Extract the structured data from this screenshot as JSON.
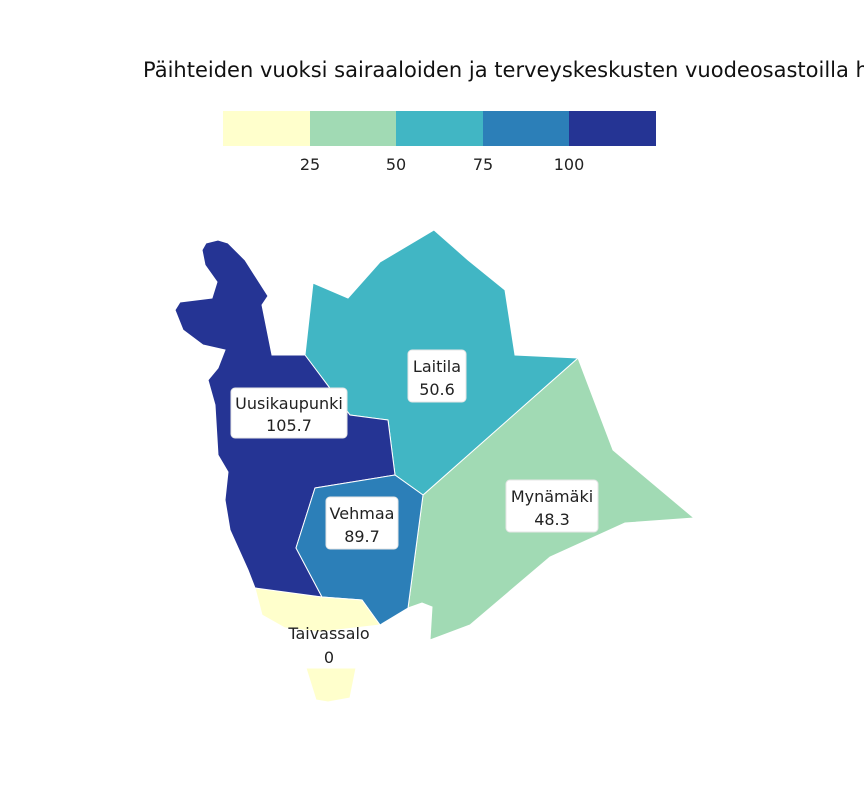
{
  "title": "Päihteiden vuoksi sairaaloiden ja terveyskeskusten vuodeosastoilla ho",
  "legend": {
    "colors": [
      "#ffffcc",
      "#a1dab4",
      "#41b6c4",
      "#2c7fb8",
      "#253494"
    ],
    "ticks": [
      "25",
      "50",
      "75",
      "100"
    ]
  },
  "regions": [
    {
      "name": "Uusikaupunki",
      "value": "105.7",
      "color": "#253494"
    },
    {
      "name": "Laitila",
      "value": "50.6",
      "color": "#41b6c4"
    },
    {
      "name": "Mynämäki",
      "value": "48.3",
      "color": "#a1dab4"
    },
    {
      "name": "Vehmaa",
      "value": "89.7",
      "color": "#2c7fb8"
    },
    {
      "name": "Taivassalo",
      "value": "0",
      "color": "#ffffcc"
    }
  ]
}
